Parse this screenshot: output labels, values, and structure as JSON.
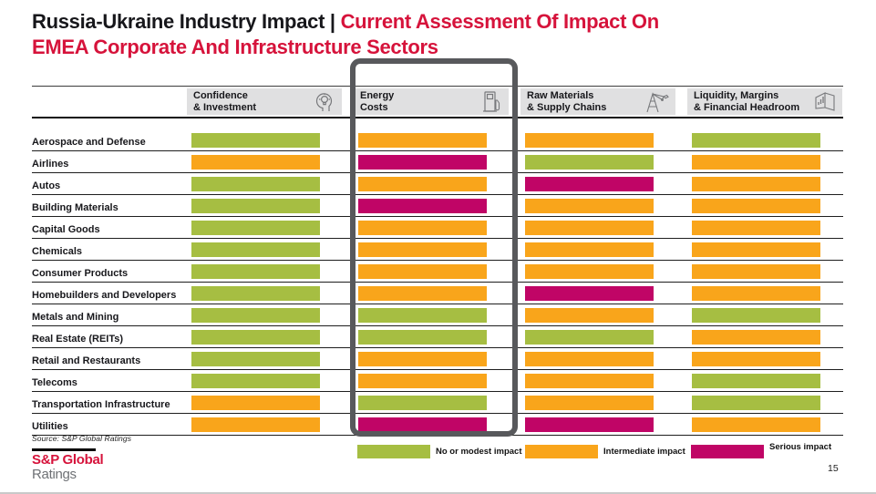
{
  "slide": {
    "title_black": "Russia-Ukraine Industry Impact | ",
    "title_red_line1": "Current Assessment Of Impact On",
    "title_red_line2": "EMEA Corporate And Infrastructure Sectors",
    "source": "Source: S&P Global Ratings",
    "logo_line1": "S&P Global",
    "logo_line2": "Ratings",
    "page_number": "15"
  },
  "header": {
    "columns": [
      {
        "line1": "Confidence",
        "line2": "& Investment",
        "icon": "thinking-head-icon"
      },
      {
        "line1": "Energy",
        "line2": "Costs",
        "icon": "fuel-pump-icon"
      },
      {
        "line1": "Raw Materials",
        "line2": "& Supply Chains",
        "icon": "oil-derrick-icon"
      },
      {
        "line1": "Liquidity, Margins",
        "line2": "& Financial Headroom",
        "icon": "report-chart-icon"
      }
    ]
  },
  "colors": {
    "no_or_modest": "#a6be42",
    "intermediate": "#f9a51b",
    "serious": "#c00566",
    "accent_red": "#d6133b",
    "header_bg": "#e0e0e1",
    "highlight_border": "#58595c"
  },
  "legend": {
    "items": [
      {
        "level": "no_or_modest",
        "label": "No or modest impact"
      },
      {
        "level": "intermediate",
        "label": "Intermediate impact"
      },
      {
        "level": "serious",
        "label": "Serious impact"
      }
    ]
  },
  "chart_data": {
    "type": "heatmap",
    "title": "Russia-Ukraine Industry Impact | Current Assessment Of Impact On EMEA Corporate And Infrastructure Sectors",
    "columns": [
      "Confidence & Investment",
      "Energy Costs",
      "Raw Materials & Supply Chains",
      "Liquidity, Margins & Financial Headroom"
    ],
    "highlighted_column": "Energy Costs",
    "levels": {
      "no_or_modest": "No or modest impact",
      "intermediate": "Intermediate impact",
      "serious": "Serious impact"
    },
    "rows": [
      {
        "label": "Aerospace and Defense",
        "values": [
          "no_or_modest",
          "intermediate",
          "intermediate",
          "no_or_modest"
        ]
      },
      {
        "label": "Airlines",
        "values": [
          "intermediate",
          "serious",
          "no_or_modest",
          "intermediate"
        ]
      },
      {
        "label": "Autos",
        "values": [
          "no_or_modest",
          "intermediate",
          "serious",
          "intermediate"
        ]
      },
      {
        "label": "Building Materials",
        "values": [
          "no_or_modest",
          "serious",
          "intermediate",
          "intermediate"
        ]
      },
      {
        "label": "Capital Goods",
        "values": [
          "no_or_modest",
          "intermediate",
          "intermediate",
          "intermediate"
        ]
      },
      {
        "label": "Chemicals",
        "values": [
          "no_or_modest",
          "intermediate",
          "intermediate",
          "intermediate"
        ]
      },
      {
        "label": "Consumer Products",
        "values": [
          "no_or_modest",
          "intermediate",
          "intermediate",
          "intermediate"
        ]
      },
      {
        "label": "Homebuilders and Developers",
        "values": [
          "no_or_modest",
          "intermediate",
          "serious",
          "intermediate"
        ]
      },
      {
        "label": "Metals and Mining",
        "values": [
          "no_or_modest",
          "no_or_modest",
          "intermediate",
          "no_or_modest"
        ]
      },
      {
        "label": "Real Estate (REITs)",
        "values": [
          "no_or_modest",
          "no_or_modest",
          "no_or_modest",
          "intermediate"
        ]
      },
      {
        "label": "Retail and Restaurants",
        "values": [
          "no_or_modest",
          "intermediate",
          "intermediate",
          "intermediate"
        ]
      },
      {
        "label": "Telecoms",
        "values": [
          "no_or_modest",
          "intermediate",
          "intermediate",
          "no_or_modest"
        ]
      },
      {
        "label": "Transportation Infrastructure",
        "values": [
          "intermediate",
          "no_or_modest",
          "intermediate",
          "no_or_modest"
        ]
      },
      {
        "label": "Utilities",
        "values": [
          "intermediate",
          "serious",
          "serious",
          "intermediate"
        ]
      }
    ],
    "legend_position": "bottom",
    "source": "Source: S&P Global Ratings"
  }
}
